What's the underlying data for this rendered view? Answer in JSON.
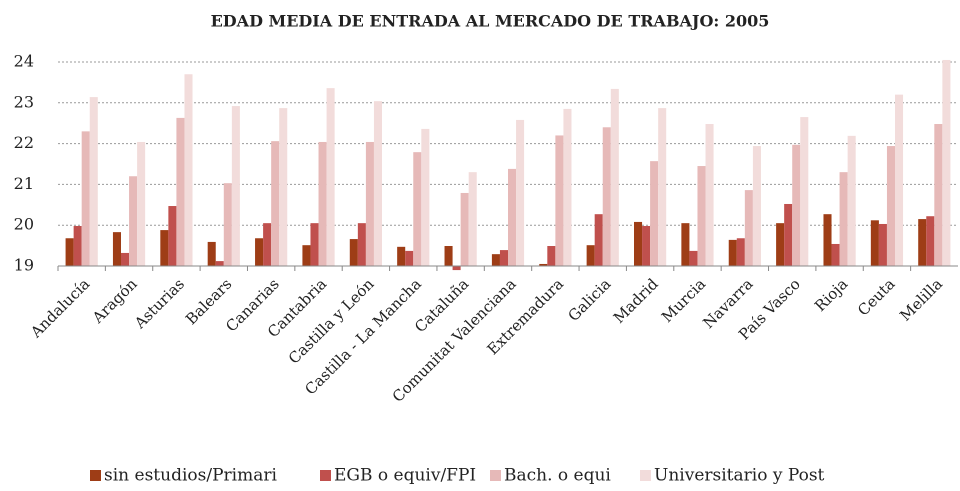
{
  "chart_data": {
    "type": "bar",
    "title": "EDAD MEDIA DE ENTRADA AL MERCADO DE TRABAJO: 2005",
    "categories": [
      "Andalucía",
      "Aragón",
      "Asturias",
      "Balears",
      "Canarias",
      "Cantabria",
      "Castilla y León",
      "Castilla - La Mancha",
      "Cataluña",
      "Comunitat Valenciana",
      "Extremadura",
      "Galicia",
      "Madrid",
      "Murcia",
      "Navarra",
      "País Vasco",
      "Rioja",
      "Ceuta",
      "Melilla"
    ],
    "series": [
      {
        "name": "sin estudios/Primari",
        "color": "#9e3d16",
        "values": [
          19.68,
          19.83,
          19.88,
          19.59,
          19.68,
          19.51,
          19.66,
          19.47,
          19.49,
          19.29,
          19.05,
          19.51,
          20.08,
          20.05,
          19.64,
          20.05,
          20.27,
          20.12,
          20.15
        ]
      },
      {
        "name": "EGB o equiv/FPI",
        "color": "#c0504d",
        "values": [
          19.98,
          19.32,
          20.47,
          19.12,
          20.05,
          20.05,
          20.05,
          19.37,
          18.9,
          19.39,
          19.49,
          20.27,
          19.98,
          19.37,
          19.68,
          20.52,
          19.54,
          20.03,
          20.22
        ]
      },
      {
        "name": "Bach. o equi",
        "color": "#e6b9b8",
        "values": [
          22.3,
          21.2,
          22.63,
          21.03,
          22.06,
          22.04,
          22.04,
          21.79,
          20.79,
          21.38,
          22.2,
          22.4,
          21.57,
          21.45,
          20.86,
          21.97,
          21.3,
          21.94,
          22.48
        ]
      },
      {
        "name": "Universitario y Post",
        "color": "#f2dcdb",
        "values": [
          23.14,
          22.04,
          23.7,
          22.92,
          22.87,
          23.36,
          23.04,
          22.36,
          21.3,
          22.58,
          22.85,
          23.34,
          22.87,
          22.48,
          21.94,
          22.65,
          22.19,
          23.2,
          24.05
        ]
      }
    ],
    "ylim": [
      19,
      24
    ],
    "yticks": [
      19,
      20,
      21,
      22,
      23,
      24
    ],
    "grid": true,
    "legend": "bottom"
  }
}
